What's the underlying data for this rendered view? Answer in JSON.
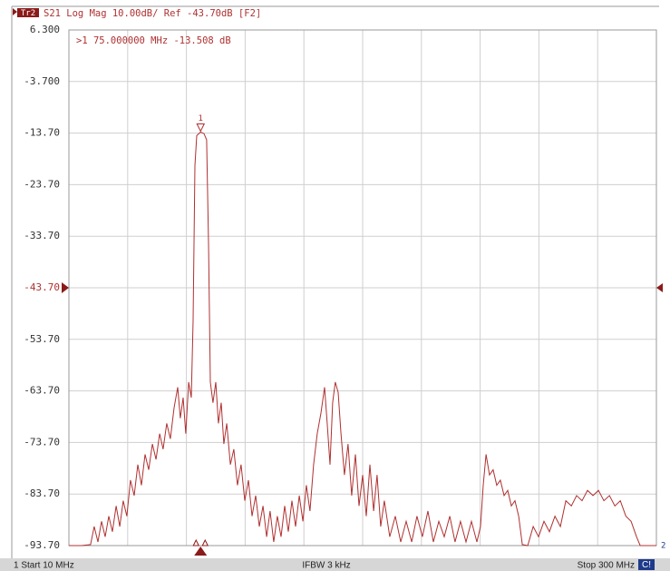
{
  "chart_data": {
    "type": "line",
    "trace_label": "Tr2",
    "title": "S21 Log Mag 10.00dB/ Ref -43.70dB [F2]",
    "color": "#b03030",
    "x": [
      10.0,
      16.3,
      20.7,
      22.5,
      24.3,
      26.1,
      27.9,
      29.7,
      31.5,
      33.3,
      35.1,
      36.8,
      38.6,
      40.4,
      42.2,
      44.0,
      45.8,
      47.6,
      49.4,
      51.2,
      53.0,
      54.8,
      56.5,
      58.3,
      60.1,
      61.9,
      63.7,
      65.0,
      66.4,
      67.7,
      69.1,
      70.4,
      71.3,
      72.2,
      73.1,
      75.0,
      76.7,
      78.0,
      78.9,
      79.8,
      81.1,
      82.5,
      83.8,
      85.2,
      86.5,
      87.9,
      89.7,
      91.4,
      93.2,
      95.0,
      96.8,
      98.6,
      100.4,
      102.2,
      104.0,
      105.8,
      107.6,
      109.3,
      111.1,
      112.9,
      114.7,
      116.5,
      118.3,
      120.1,
      121.9,
      123.7,
      125.5,
      127.2,
      129.0,
      130.8,
      132.6,
      134.4,
      136.2,
      137.5,
      138.9,
      140.2,
      141.5,
      142.9,
      144.3,
      146.0,
      147.8,
      149.6,
      151.4,
      153.2,
      155.0,
      156.8,
      158.6,
      160.4,
      162.1,
      163.9,
      165.7,
      168.4,
      171.1,
      173.8,
      176.5,
      179.2,
      181.8,
      184.5,
      187.2,
      189.9,
      192.6,
      195.3,
      198.0,
      200.6,
      203.3,
      206.0,
      208.7,
      211.4,
      213.2,
      214.5,
      215.9,
      217.6,
      219.4,
      221.2,
      223.0,
      224.8,
      226.6,
      228.4,
      230.2,
      232.0,
      233.8,
      236.5,
      239.2,
      241.8,
      244.5,
      247.2,
      249.9,
      252.6,
      255.3,
      258.0,
      260.6,
      263.3,
      266.0,
      268.7,
      271.4,
      274.1,
      276.8,
      279.5,
      282.2,
      284.9,
      287.5,
      290.2,
      292.0,
      300.0
    ],
    "values": [
      -93.7,
      -93.7,
      -93.5,
      -90,
      -93,
      -89,
      -92,
      -88,
      -91,
      -86,
      -90,
      -85,
      -88,
      -81,
      -84,
      -78,
      -82,
      -76,
      -79,
      -74,
      -77,
      -72,
      -75,
      -70,
      -73,
      -67,
      -63,
      -69,
      -65,
      -72,
      -62,
      -65,
      -50,
      -20,
      -14.2,
      -13.508,
      -13.8,
      -15,
      -35,
      -62,
      -66,
      -62,
      -70,
      -66,
      -74,
      -70,
      -78,
      -75,
      -82,
      -78,
      -85,
      -81,
      -88,
      -84,
      -90,
      -86,
      -92,
      -87,
      -93,
      -88,
      -92,
      -86,
      -91,
      -85,
      -90,
      -84,
      -89,
      -82,
      -87,
      -78,
      -72,
      -68,
      -63,
      -70,
      -78,
      -66,
      -62,
      -64,
      -72,
      -80,
      -74,
      -84,
      -76,
      -86,
      -80,
      -88,
      -78,
      -87,
      -80,
      -90,
      -85,
      -92,
      -88,
      -93,
      -89,
      -93,
      -88,
      -92,
      -87,
      -93,
      -89,
      -92,
      -88,
      -93,
      -89,
      -93,
      -89,
      -93,
      -90,
      -82,
      -76,
      -80,
      -79,
      -82,
      -81,
      -84,
      -83,
      -86,
      -85,
      -88,
      -93.5,
      -93.7,
      -90,
      -92,
      -89,
      -91,
      -88,
      -90,
      -85,
      -86,
      -84,
      -85,
      -83,
      -84,
      -83,
      -85,
      -84,
      -86,
      -85,
      -88,
      -89,
      -92,
      -93.7,
      -93.7
    ],
    "xlim": [
      10,
      300
    ],
    "ylim": [
      -93.7,
      6.3
    ],
    "yticks": [
      {
        "value": 6.3,
        "label": "6.300"
      },
      {
        "value": -3.7,
        "label": "-3.700"
      },
      {
        "value": -13.7,
        "label": "-13.70"
      },
      {
        "value": -23.7,
        "label": "-23.70"
      },
      {
        "value": -33.7,
        "label": "-33.70"
      },
      {
        "value": -43.7,
        "label": "-43.70"
      },
      {
        "value": -53.7,
        "label": "-53.70"
      },
      {
        "value": -63.7,
        "label": "-63.70"
      },
      {
        "value": -73.7,
        "label": "-73.70"
      },
      {
        "value": -83.7,
        "label": "-83.70"
      },
      {
        "value": -93.7,
        "label": "-93.70"
      }
    ],
    "ref_level": -43.7,
    "marker": {
      "label": "1",
      "x": 75,
      "value": -13.508,
      "readout": ">1  75.000000 MHz -13.508 dB"
    },
    "trace_end_label": "2",
    "footer": {
      "start": "1  Start 10 MHz",
      "ifbw": "IFBW 3 kHz",
      "stop": "Stop 300 MHz",
      "channel": "C!"
    }
  }
}
